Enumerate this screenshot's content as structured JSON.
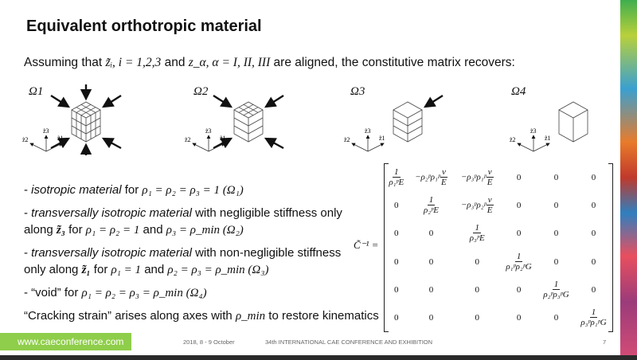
{
  "title": "Equivalent orthotropic material",
  "intro": {
    "t1": "Assuming that ",
    "m1": "z̃ᵢ, i = 1,2,3",
    "t2": " and ",
    "m2": "z_α, α = I, II, III",
    "t3": " are aligned, the constitutive matrix recovers:"
  },
  "figures": [
    {
      "label": "Ω1",
      "arrows": "all"
    },
    {
      "label": "Ω2",
      "arrows": "lateral"
    },
    {
      "label": "Ω3",
      "arrows": "one"
    },
    {
      "label": "Ω4",
      "arrows": "none"
    }
  ],
  "axes": {
    "z1": "z̃1",
    "z2": "z̃2",
    "z3": "z̃3"
  },
  "bullets": [
    {
      "dash": "- ",
      "it": "isotropic material",
      "t": " for ",
      "m": "ρ₁ = ρ₂ = ρ₃ = 1  (Ω₁)"
    },
    {
      "dash": "- ",
      "it": "transversally isotropic material",
      "t": " with negligible stiffness only along ",
      "m0": "z̃₃",
      "t2": " for ",
      "m": "ρ₁ = ρ₂ = 1",
      "t3": " and ",
      "m2": "ρ₃ = ρ_min  (Ω₂)"
    },
    {
      "dash": "- ",
      "it": "transversally isotropic material",
      "t": " with non-negligible stiffness only along ",
      "m0": "z̃₁",
      "t2": " for ",
      "m": "ρ₁ = 1",
      "t3": " and ",
      "m2": "ρ₂ = ρ₃ = ρ_min  (Ω₃)"
    },
    {
      "dash": "- ",
      "it": "“void”",
      "t": " for ",
      "m": "ρ₁ = ρ₂ = ρ₃ = ρ_min  (Ω₄)"
    }
  ],
  "crack": {
    "t1": "“Cracking strain” arises along axes with ",
    "m": "ρ_min",
    "t2": " to restore kinematics"
  },
  "matrix_label": "C̃⁻¹ =",
  "matrix": [
    [
      {
        "num": "1",
        "den": "ρ₁ᵖE"
      },
      {
        "pre": "−ρ₂ᵖρ₁ᵖ",
        "num": "ν",
        "den": "E"
      },
      {
        "pre": "−ρ₃ᵖρ₁ᵖ",
        "num": "ν",
        "den": "E"
      },
      {
        "t": "0"
      },
      {
        "t": "0"
      },
      {
        "t": "0"
      }
    ],
    [
      {
        "t": "0"
      },
      {
        "num": "1",
        "den": "ρ₂ᵖE"
      },
      {
        "pre": "−ρ₃ᵖρ₂ᵖ",
        "num": "ν",
        "den": "E"
      },
      {
        "t": "0"
      },
      {
        "t": "0"
      },
      {
        "t": "0"
      }
    ],
    [
      {
        "t": "0"
      },
      {
        "t": "0"
      },
      {
        "num": "1",
        "den": "ρ₃ᵖE"
      },
      {
        "t": "0"
      },
      {
        "t": "0"
      },
      {
        "t": "0"
      }
    ],
    [
      {
        "t": "0"
      },
      {
        "t": "0"
      },
      {
        "t": "0"
      },
      {
        "num": "1",
        "den": "ρ₁ᵖρ₂ᵖG"
      },
      {
        "t": "0"
      },
      {
        "t": "0"
      }
    ],
    [
      {
        "t": "0"
      },
      {
        "t": "0"
      },
      {
        "t": "0"
      },
      {
        "t": "0"
      },
      {
        "num": "1",
        "den": "ρ₂ᵖρ₃ᵖG"
      },
      {
        "t": "0"
      }
    ],
    [
      {
        "t": "0"
      },
      {
        "t": "0"
      },
      {
        "t": "0"
      },
      {
        "t": "0"
      },
      {
        "t": "0"
      },
      {
        "num": "1",
        "den": "ρ₃ᵖρ₁ᵖG"
      }
    ]
  ],
  "footer": {
    "url": "www.caeconference.com",
    "date": "2018, 8 - 9 October",
    "event": "34th INTERNATIONAL CAE CONFERENCE AND EXHIBITION",
    "page": "7"
  },
  "colors": {
    "footer_green": "#8fce4a",
    "dark_bar": "#2a2a2a"
  }
}
